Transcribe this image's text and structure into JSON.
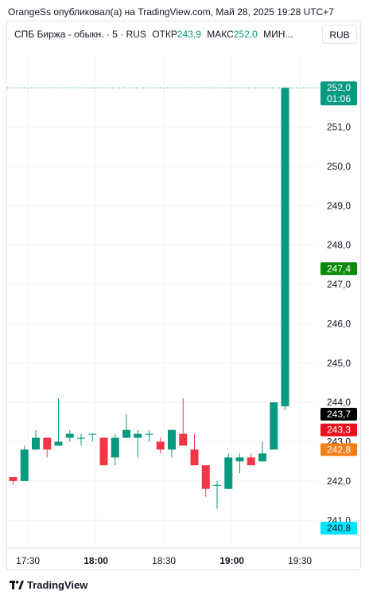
{
  "publisher_line": "OrangeSs опубликовал(а) на TradingView.com, Май 28, 2025 19:28 UTC+7",
  "legend": {
    "symbol": "СПБ Биржа - обыкн. · 5 · RUS",
    "open_label": "ОТКР",
    "open_value": "243,9",
    "high_label": "МАКС",
    "high_value": "252,0",
    "low_label": "МИН..."
  },
  "currency_button": "RUB",
  "footer_logo": "TradingView",
  "colors": {
    "up": "#089981",
    "down": "#f23645",
    "grid": "#f0f3fa",
    "text": "#131722"
  },
  "chart_data": {
    "type": "candlestick",
    "ylim": [
      240.6,
      252.45
    ],
    "y_ticks": [
      "241,0",
      "242,0",
      "243,0",
      "244,0",
      "245,0",
      "246,0",
      "247,0",
      "248,0",
      "249,0",
      "250,0",
      "251,0"
    ],
    "x_ticks": [
      {
        "label": "17:30",
        "bold": false
      },
      {
        "label": "18:00",
        "bold": true
      },
      {
        "label": "18:30",
        "bold": false
      },
      {
        "label": "19:00",
        "bold": true
      },
      {
        "label": "19:30",
        "bold": false
      }
    ],
    "candles": [
      {
        "o": 242.1,
        "h": 242.1,
        "l": 241.9,
        "c": 242.0
      },
      {
        "o": 242.0,
        "h": 242.9,
        "l": 242.0,
        "c": 242.8
      },
      {
        "o": 242.8,
        "h": 243.3,
        "l": 242.8,
        "c": 243.1
      },
      {
        "o": 243.1,
        "h": 243.1,
        "l": 242.6,
        "c": 242.8
      },
      {
        "o": 242.9,
        "h": 244.1,
        "l": 242.9,
        "c": 243.0
      },
      {
        "o": 243.1,
        "h": 243.3,
        "l": 243.0,
        "c": 243.2
      },
      {
        "o": 243.1,
        "h": 243.2,
        "l": 242.9,
        "c": 243.1
      },
      {
        "o": 243.2,
        "h": 243.2,
        "l": 243.0,
        "c": 243.2
      },
      {
        "o": 243.1,
        "h": 243.1,
        "l": 242.4,
        "c": 242.4
      },
      {
        "o": 242.6,
        "h": 243.2,
        "l": 242.4,
        "c": 243.1
      },
      {
        "o": 243.1,
        "h": 243.7,
        "l": 243.1,
        "c": 243.3
      },
      {
        "o": 243.1,
        "h": 243.3,
        "l": 242.6,
        "c": 243.2
      },
      {
        "o": 243.2,
        "h": 243.3,
        "l": 243.0,
        "c": 243.2
      },
      {
        "o": 243.0,
        "h": 243.1,
        "l": 242.7,
        "c": 242.8
      },
      {
        "o": 242.8,
        "h": 243.3,
        "l": 242.6,
        "c": 243.3
      },
      {
        "o": 243.2,
        "h": 244.1,
        "l": 242.9,
        "c": 242.9
      },
      {
        "o": 242.8,
        "h": 243.2,
        "l": 242.4,
        "c": 242.4
      },
      {
        "o": 242.4,
        "h": 242.4,
        "l": 241.6,
        "c": 241.8
      },
      {
        "o": 241.9,
        "h": 242.0,
        "l": 241.3,
        "c": 241.9
      },
      {
        "o": 241.8,
        "h": 242.7,
        "l": 241.8,
        "c": 242.6
      },
      {
        "o": 242.5,
        "h": 242.7,
        "l": 242.2,
        "c": 242.6
      },
      {
        "o": 242.6,
        "h": 242.7,
        "l": 242.4,
        "c": 242.4
      },
      {
        "o": 242.5,
        "h": 243.0,
        "l": 242.5,
        "c": 242.7
      },
      {
        "o": 242.8,
        "h": 244.0,
        "l": 242.8,
        "c": 244.0
      },
      {
        "o": 243.9,
        "h": 252.0,
        "l": 243.8,
        "c": 252.0
      }
    ],
    "price_labels": [
      {
        "price": 252.0,
        "text": "252,0",
        "sub": "01:06",
        "color": "#089981"
      },
      {
        "price": 247.4,
        "text": "247,4",
        "color": "#0a8a0a"
      },
      {
        "price": 243.7,
        "text": "243,7",
        "color": "#000000"
      },
      {
        "price": 243.3,
        "text": "243,3",
        "color": "#e8101c"
      },
      {
        "price": 242.8,
        "text": "242,8",
        "color": "#f57f17"
      },
      {
        "price": 240.8,
        "text": "240,8",
        "color": "#00e5ff"
      }
    ],
    "last_price": 252.0
  }
}
